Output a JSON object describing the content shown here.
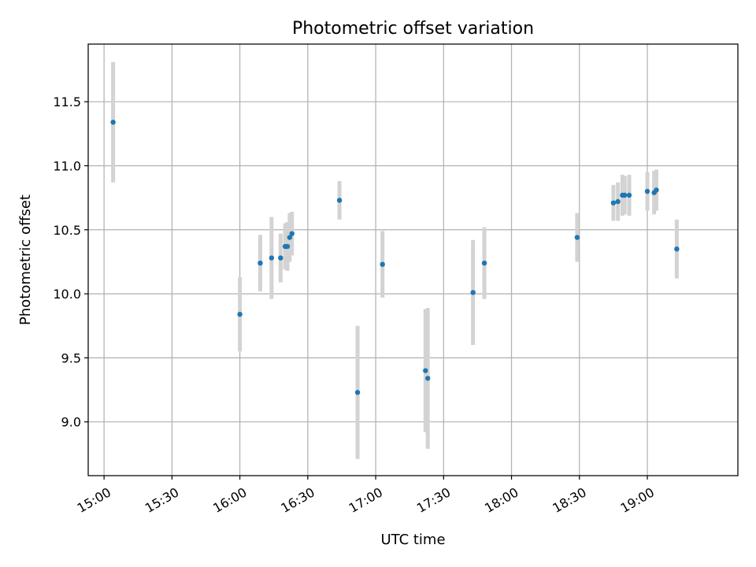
{
  "chart_data": {
    "type": "scatter",
    "title": "Photometric offset variation",
    "xlabel": "UTC time",
    "ylabel": "Photometric offset",
    "x_ticks": [
      "15:00",
      "15:30",
      "16:00",
      "16:30",
      "17:00",
      "17:30",
      "18:00",
      "18:30",
      "19:00"
    ],
    "y_ticks": [
      "9.0",
      "9.5",
      "10.0",
      "10.5",
      "11.0",
      "11.5"
    ],
    "xlim": [
      "14:53",
      "19:40"
    ],
    "ylim": [
      8.58,
      11.95
    ],
    "grid": true,
    "marker_color": "#1f77b4",
    "errorbar_color": "#d3d3d3",
    "points": [
      {
        "x": "15:04",
        "y": 11.34,
        "err": 0.47
      },
      {
        "x": "16:00",
        "y": 9.84,
        "err": 0.29
      },
      {
        "x": "16:09",
        "y": 10.24,
        "err": 0.22
      },
      {
        "x": "16:14",
        "y": 10.28,
        "err": 0.32
      },
      {
        "x": "16:18",
        "y": 10.28,
        "err": 0.19
      },
      {
        "x": "16:20",
        "y": 10.37,
        "err": 0.18
      },
      {
        "x": "16:21",
        "y": 10.37,
        "err": 0.19
      },
      {
        "x": "16:22",
        "y": 10.44,
        "err": 0.19
      },
      {
        "x": "16:23",
        "y": 10.47,
        "err": 0.17
      },
      {
        "x": "16:44",
        "y": 10.73,
        "err": 0.15
      },
      {
        "x": "16:52",
        "y": 9.23,
        "err": 0.52
      },
      {
        "x": "17:03",
        "y": 10.23,
        "err": 0.26
      },
      {
        "x": "17:22",
        "y": 9.4,
        "err": 0.48
      },
      {
        "x": "17:23",
        "y": 9.34,
        "err": 0.55
      },
      {
        "x": "17:43",
        "y": 10.01,
        "err": 0.41
      },
      {
        "x": "17:48",
        "y": 10.24,
        "err": 0.28
      },
      {
        "x": "18:29",
        "y": 10.44,
        "err": 0.19
      },
      {
        "x": "18:45",
        "y": 10.71,
        "err": 0.14
      },
      {
        "x": "18:47",
        "y": 10.72,
        "err": 0.15
      },
      {
        "x": "18:49",
        "y": 10.77,
        "err": 0.16
      },
      {
        "x": "18:50",
        "y": 10.77,
        "err": 0.15
      },
      {
        "x": "18:52",
        "y": 10.77,
        "err": 0.16
      },
      {
        "x": "19:00",
        "y": 10.8,
        "err": 0.15
      },
      {
        "x": "19:03",
        "y": 10.79,
        "err": 0.17
      },
      {
        "x": "19:04",
        "y": 10.81,
        "err": 0.16
      },
      {
        "x": "19:13",
        "y": 10.35,
        "err": 0.23
      }
    ]
  }
}
